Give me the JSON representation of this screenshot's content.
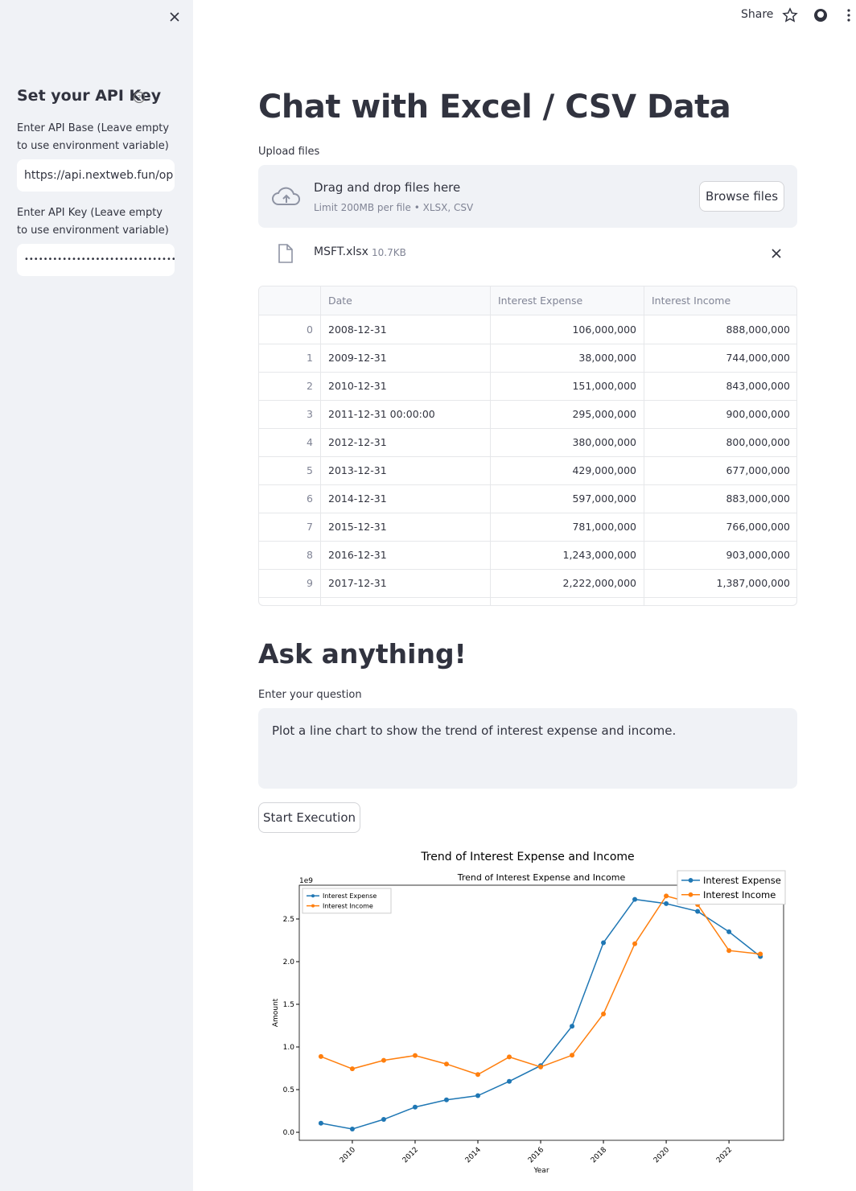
{
  "sidebar": {
    "title": "Set your API Key",
    "api_base_label": "Enter API Base (Leave empty to use environment variable)",
    "api_base_value": "https://api.nextweb.fun/op",
    "api_key_label": "Enter API Key (Leave empty to use environment variable)",
    "api_key_value": "•••••••••••••••••••••••••••••••••"
  },
  "toolbar": {
    "share": "Share"
  },
  "header": {
    "title": "Chat with Excel / CSV Data"
  },
  "uploader": {
    "label": "Upload files",
    "drop_text": "Drag and drop files here",
    "limit": "Limit 200MB per file • XLSX, CSV",
    "button": "Browse files",
    "file_name": "MSFT.xlsx",
    "file_size": "10.7KB"
  },
  "table": {
    "columns": [
      "Date",
      "Interest Expense",
      "Interest Income"
    ],
    "index": [
      "0",
      "1",
      "2",
      "3",
      "4",
      "5",
      "6",
      "7",
      "8",
      "9"
    ],
    "rows": [
      [
        "2008-12-31",
        "106,000,000",
        "888,000,000"
      ],
      [
        "2009-12-31",
        "38,000,000",
        "744,000,000"
      ],
      [
        "2010-12-31",
        "151,000,000",
        "843,000,000"
      ],
      [
        "2011-12-31 00:00:00",
        "295,000,000",
        "900,000,000"
      ],
      [
        "2012-12-31",
        "380,000,000",
        "800,000,000"
      ],
      [
        "2013-12-31",
        "429,000,000",
        "677,000,000"
      ],
      [
        "2014-12-31",
        "597,000,000",
        "883,000,000"
      ],
      [
        "2015-12-31",
        "781,000,000",
        "766,000,000"
      ],
      [
        "2016-12-31",
        "1,243,000,000",
        "903,000,000"
      ],
      [
        "2017-12-31",
        "2,222,000,000",
        "1,387,000,000"
      ]
    ]
  },
  "ask": {
    "heading": "Ask anything!",
    "label": "Enter your question",
    "question": "Plot a line chart  to show the trend of interest expense and income.",
    "button": "Start Execution"
  },
  "chart_data": {
    "type": "line",
    "title": "Trend of Interest Expense and Income",
    "axes_title": "Trend of Interest Expense and Income",
    "offset_label": "1e9",
    "xlabel": "Year",
    "ylabel": "Amount",
    "x": [
      2009,
      2010,
      2011,
      2012,
      2013,
      2014,
      2015,
      2016,
      2017,
      2018,
      2019,
      2020,
      2021,
      2022,
      2023
    ],
    "series": [
      {
        "name": "Interest Expense",
        "color": "#1f77b4",
        "values": [
          0.106,
          0.038,
          0.151,
          0.295,
          0.38,
          0.429,
          0.597,
          0.781,
          1.243,
          2.222,
          2.73,
          2.68,
          2.59,
          2.35,
          2.06
        ]
      },
      {
        "name": "Interest Income",
        "color": "#ff7f0e",
        "values": [
          0.888,
          0.744,
          0.843,
          0.9,
          0.8,
          0.677,
          0.883,
          0.766,
          0.903,
          1.387,
          2.21,
          2.77,
          2.67,
          2.13,
          2.09
        ]
      }
    ],
    "xlim": [
      2008.31,
      2023.74
    ],
    "ylim": [
      -0.094,
      2.896
    ],
    "xticks": [
      2010,
      2012,
      2014,
      2016,
      2018,
      2020,
      2022
    ],
    "yticks": [
      {
        "value": 0,
        "label": "0.0"
      },
      0.5,
      {
        "value": 1,
        "label": "1.0"
      },
      1.5,
      {
        "value": 2,
        "label": "2.0"
      },
      2.5
    ],
    "legend": "upper left",
    "figure_legend": "upper right",
    "marker": "circle"
  }
}
